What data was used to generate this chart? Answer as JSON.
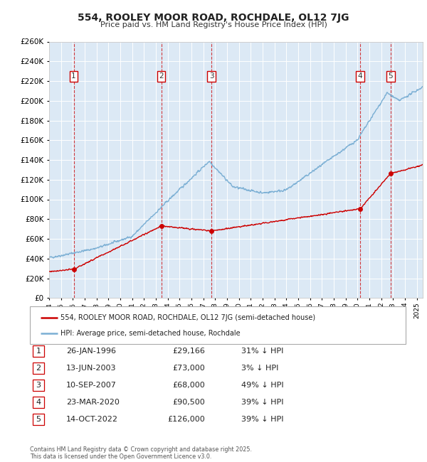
{
  "title": "554, ROOLEY MOOR ROAD, ROCHDALE, OL12 7JG",
  "subtitle": "Price paid vs. HM Land Registry's House Price Index (HPI)",
  "plot_bg_color": "#dce9f5",
  "hpi_color": "#7bafd4",
  "price_color": "#cc0000",
  "grid_color": "#ffffff",
  "ylim": [
    0,
    260000
  ],
  "yticks": [
    0,
    20000,
    40000,
    60000,
    80000,
    100000,
    120000,
    140000,
    160000,
    180000,
    200000,
    220000,
    240000,
    260000
  ],
  "xmin": 1994.0,
  "xmax": 2025.5,
  "transactions": [
    {
      "num": 1,
      "price": 29166,
      "x": 1996.07
    },
    {
      "num": 2,
      "price": 73000,
      "x": 2003.45
    },
    {
      "num": 3,
      "price": 68000,
      "x": 2007.69
    },
    {
      "num": 4,
      "price": 90500,
      "x": 2020.23
    },
    {
      "num": 5,
      "price": 126000,
      "x": 2022.78
    }
  ],
  "table_data": [
    {
      "num": 1,
      "date": "26-JAN-1996",
      "price": "£29,166",
      "pct": "31% ↓ HPI"
    },
    {
      "num": 2,
      "date": "13-JUN-2003",
      "price": "£73,000",
      "pct": "3% ↓ HPI"
    },
    {
      "num": 3,
      "date": "10-SEP-2007",
      "price": "£68,000",
      "pct": "49% ↓ HPI"
    },
    {
      "num": 4,
      "date": "23-MAR-2020",
      "price": "£90,500",
      "pct": "39% ↓ HPI"
    },
    {
      "num": 5,
      "date": "14-OCT-2022",
      "price": "£126,000",
      "pct": "39% ↓ HPI"
    }
  ],
  "legend_entries": [
    {
      "label": "554, ROOLEY MOOR ROAD, ROCHDALE, OL12 7JG (semi-detached house)",
      "color": "#cc0000"
    },
    {
      "label": "HPI: Average price, semi-detached house, Rochdale",
      "color": "#7bafd4"
    }
  ],
  "footnote": "Contains HM Land Registry data © Crown copyright and database right 2025.\nThis data is licensed under the Open Government Licence v3.0."
}
